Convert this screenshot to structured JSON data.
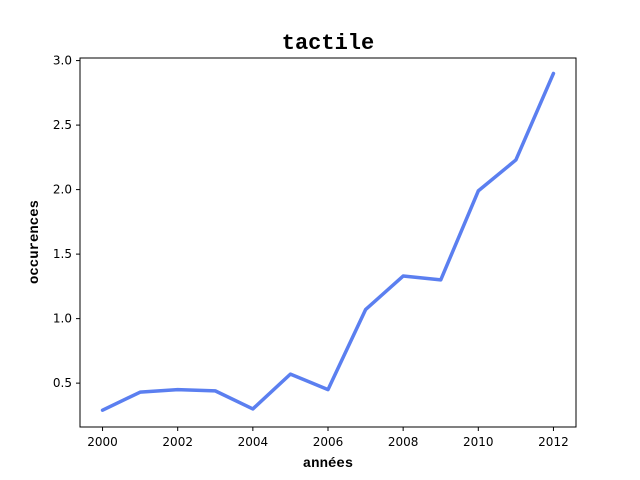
{
  "chart_data": {
    "type": "line",
    "title": "tactile",
    "xlabel": "années",
    "ylabel": "occurences",
    "x": [
      2000,
      2001,
      2002,
      2003,
      2004,
      2005,
      2006,
      2007,
      2008,
      2009,
      2010,
      2011,
      2012
    ],
    "series": [
      {
        "values": [
          0.29,
          0.43,
          0.45,
          0.44,
          0.3,
          0.57,
          0.45,
          1.07,
          1.33,
          1.3,
          1.99,
          2.23,
          2.9
        ],
        "color": "#5b7ff0"
      }
    ],
    "xlim": [
      1999.4,
      2012.6
    ],
    "ylim": [
      0.16,
      3.02
    ],
    "xticks": [
      "2000",
      "2002",
      "2004",
      "2006",
      "2008",
      "2010",
      "2012"
    ],
    "yticks": [
      "0.5",
      "1.0",
      "1.5",
      "2.0",
      "2.5",
      "3.0"
    ],
    "grid": false
  }
}
